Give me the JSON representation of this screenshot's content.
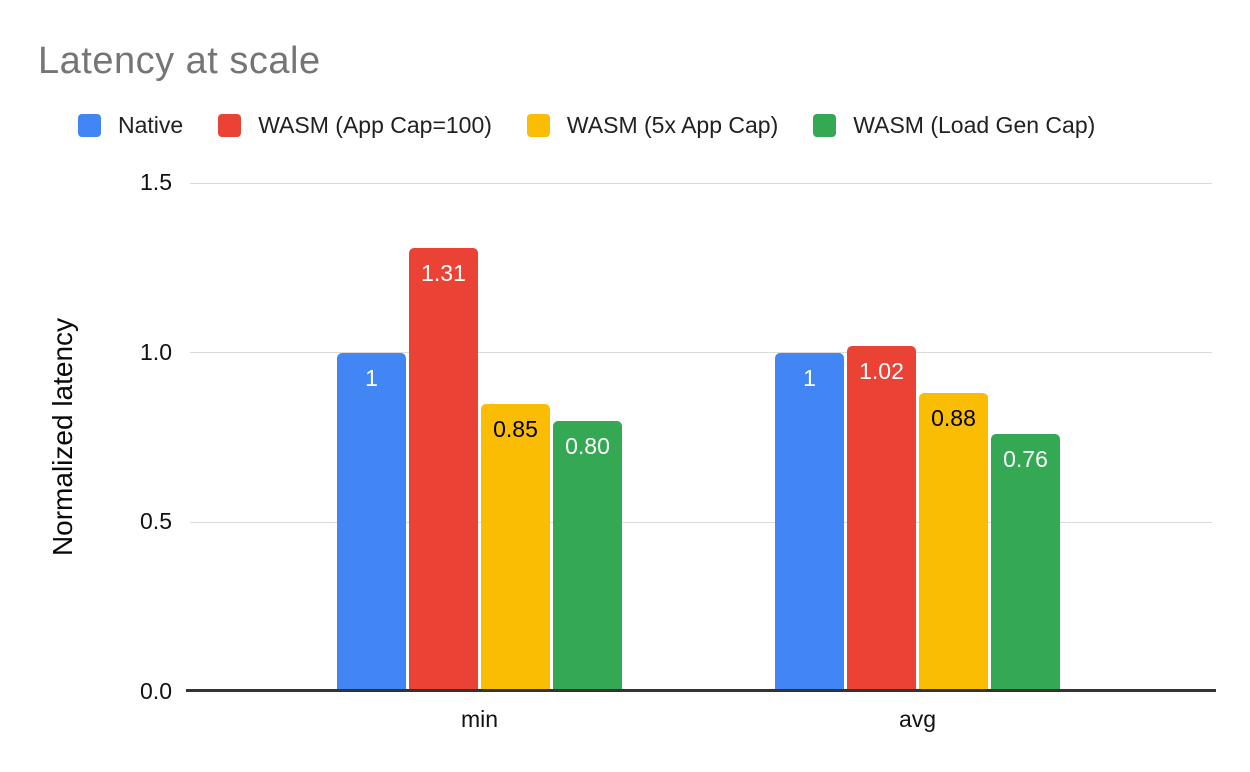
{
  "chart_data": {
    "type": "bar",
    "title": "Latency at scale",
    "xlabel": "",
    "ylabel": "Normalized latency",
    "categories": [
      "min",
      "avg"
    ],
    "series": [
      {
        "name": "Native",
        "color": "#4285F4",
        "label_color": "#ffffff",
        "values": [
          1.0,
          1.0
        ],
        "labels": [
          "1",
          "1"
        ]
      },
      {
        "name": "WASM (App Cap=100)",
        "color": "#EA4335",
        "label_color": "#ffffff",
        "values": [
          1.31,
          1.02
        ],
        "labels": [
          "1.31",
          "1.02"
        ]
      },
      {
        "name": "WASM (5x App Cap)",
        "color": "#FBBC04",
        "label_color": "#000000",
        "values": [
          0.85,
          0.88
        ],
        "labels": [
          "0.85",
          "0.88"
        ]
      },
      {
        "name": "WASM (Load Gen Cap)",
        "color": "#34A853",
        "label_color": "#ffffff",
        "values": [
          0.8,
          0.76
        ],
        "labels": [
          "0.80",
          "0.76"
        ]
      }
    ],
    "ylim": [
      0,
      1.5
    ],
    "yticks": [
      "0.0",
      "0.5",
      "1.0",
      "1.5"
    ],
    "grid": true,
    "legend_position": "top",
    "style": {
      "background": "#ffffff",
      "title_color": "#757575",
      "gridline_color": "#dadada",
      "axis_line_color": "#333333",
      "text_color": "#111111"
    }
  }
}
